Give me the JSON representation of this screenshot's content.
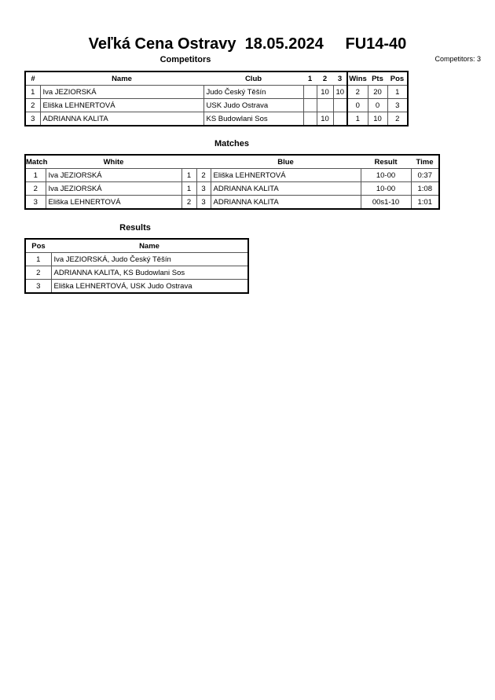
{
  "title": "Veľká Cena Ostravy  18.05.2024     FU14-40",
  "competitors": {
    "heading": "Competitors",
    "count_label": "Competitors: 3",
    "columns": [
      "#",
      "Name",
      "Club",
      "1",
      "2",
      "3",
      "Wins",
      "Pts",
      "Pos"
    ],
    "rows": [
      {
        "num": "1",
        "name": "Iva JEZIORSKÁ",
        "club": "Judo Český Těšín",
        "s1": "",
        "s2": "10",
        "s3": "10",
        "wins": "2",
        "pts": "20",
        "pos": "1"
      },
      {
        "num": "2",
        "name": "Eliška LEHNERTOVÁ",
        "club": "USK Judo Ostrava",
        "s1": "",
        "s2": "",
        "s3": "",
        "wins": "0",
        "pts": "0",
        "pos": "3"
      },
      {
        "num": "3",
        "name": "ADRIANNA KALITA",
        "club": "KS Budowlani Sos",
        "s1": "",
        "s2": "10",
        "s3": "",
        "wins": "1",
        "pts": "10",
        "pos": "2"
      }
    ]
  },
  "matches": {
    "heading": "Matches",
    "columns": [
      "Match",
      "White",
      "Blue",
      "Result",
      "Time"
    ],
    "rows": [
      {
        "match": "1",
        "white": "Iva JEZIORSKÁ",
        "wn": "1",
        "bn": "2",
        "blue": "Eliška LEHNERTOVÁ",
        "result": "10-00",
        "time": "0:37"
      },
      {
        "match": "2",
        "white": "Iva JEZIORSKÁ",
        "wn": "1",
        "bn": "3",
        "blue": "ADRIANNA KALITA",
        "result": "10-00",
        "time": "1:08"
      },
      {
        "match": "3",
        "white": "Eliška LEHNERTOVÁ",
        "wn": "2",
        "bn": "3",
        "blue": "ADRIANNA KALITA",
        "result": "00s1-10",
        "time": "1:01"
      }
    ]
  },
  "results": {
    "heading": "Results",
    "columns": [
      "Pos",
      "Name"
    ],
    "rows": [
      {
        "pos": "1",
        "name": "Iva JEZIORSKÁ, Judo Český Těšín"
      },
      {
        "pos": "2",
        "name": "ADRIANNA KALITA, KS Budowlani Sos"
      },
      {
        "pos": "3",
        "name": "Eliška LEHNERTOVÁ, USK Judo Ostrava"
      }
    ]
  }
}
